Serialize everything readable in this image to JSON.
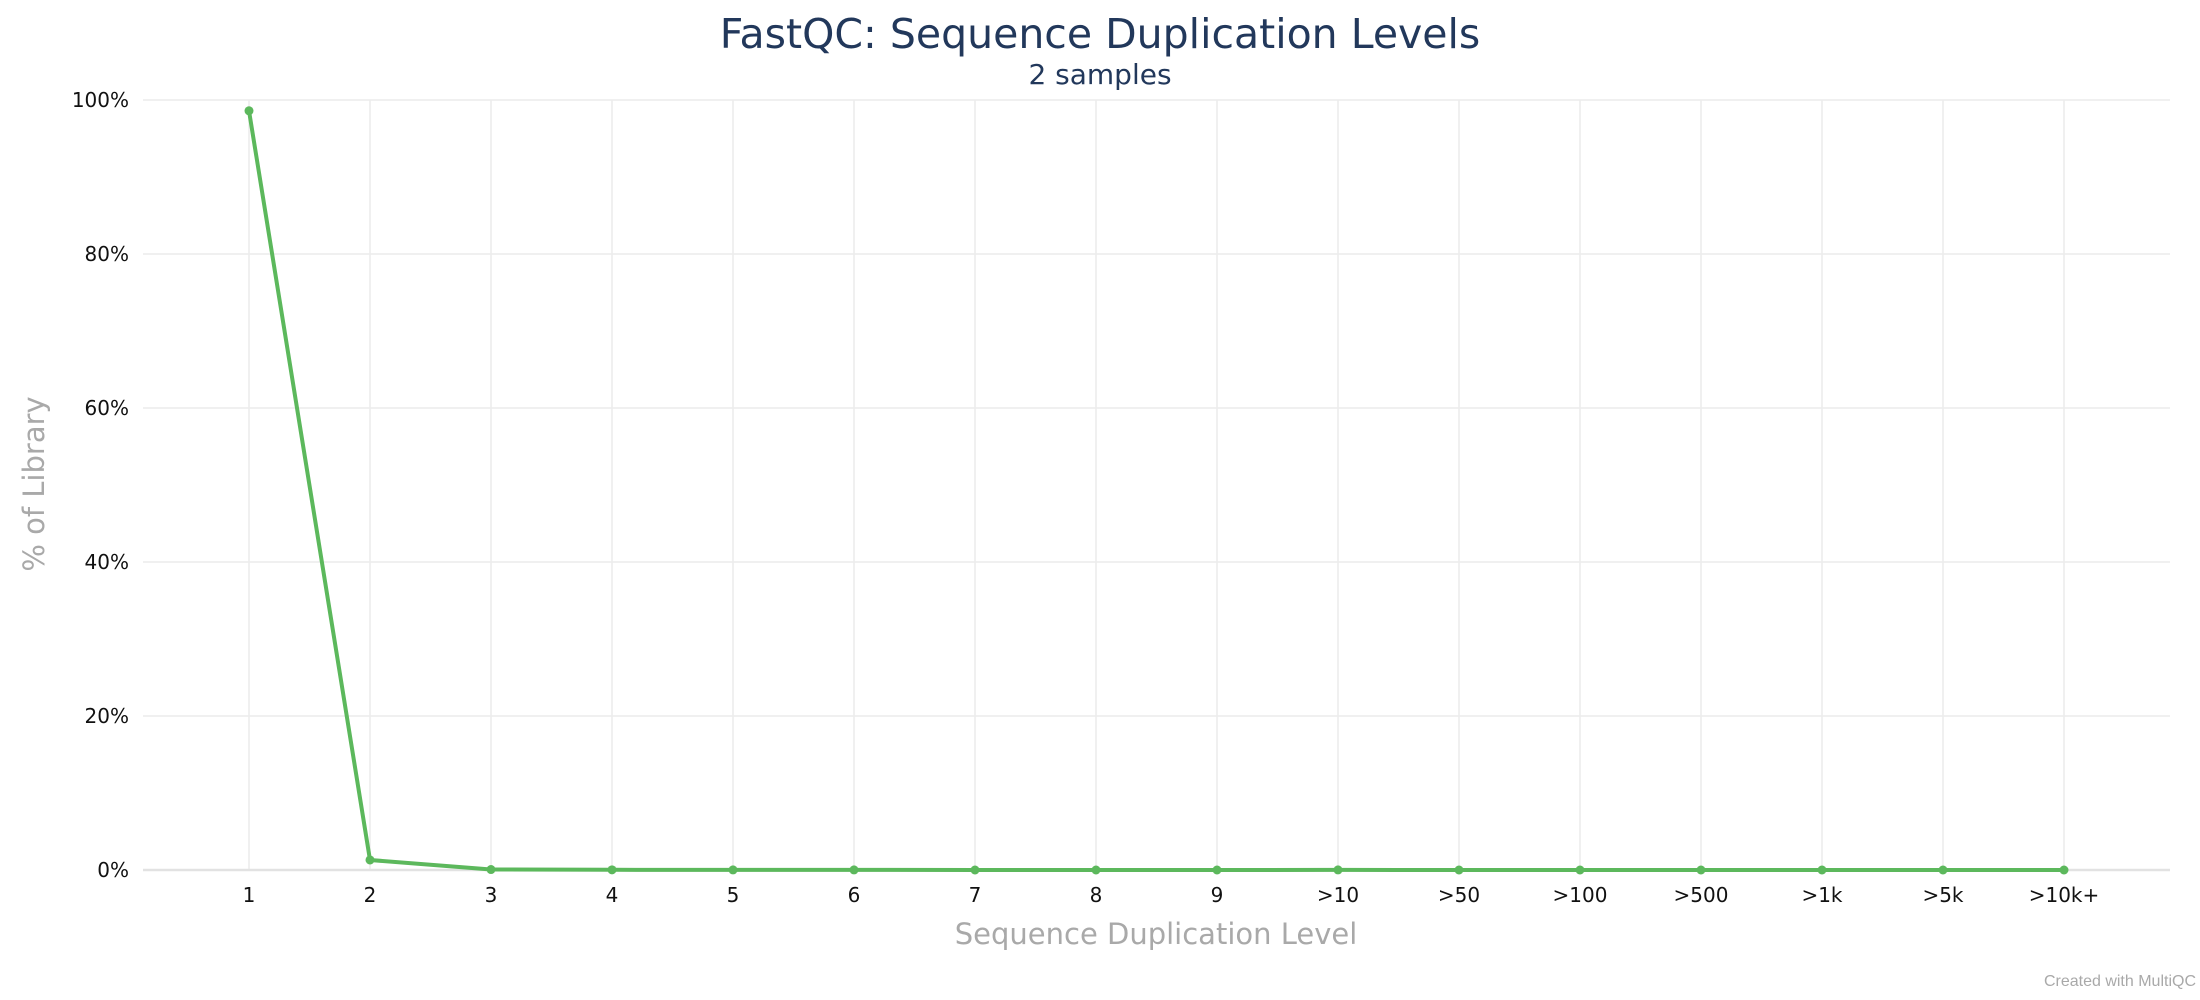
{
  "chart_data": {
    "type": "line",
    "title": "FastQC: Sequence Duplication Levels",
    "subtitle": "2 samples",
    "xlabel": "Sequence Duplication Level",
    "ylabel": "% of Library",
    "categories": [
      "1",
      "2",
      "3",
      "4",
      "5",
      "6",
      "7",
      "8",
      "9",
      ">10",
      ">50",
      ">100",
      ">500",
      ">1k",
      ">5k",
      ">10k+"
    ],
    "ylim": [
      0,
      100
    ],
    "yticks": [
      "0%",
      "20%",
      "40%",
      "60%",
      "80%",
      "100%"
    ],
    "series": [
      {
        "color": "#5cb85c",
        "values": [
          98.6,
          1.3,
          0.06,
          0.02,
          0.01,
          0.01,
          0.0,
          0.0,
          0.0,
          0.01,
          0.0,
          0.0,
          0.0,
          0.0,
          0.0,
          0.0
        ]
      }
    ],
    "grid": true,
    "credit": "Created with MultiQC"
  }
}
